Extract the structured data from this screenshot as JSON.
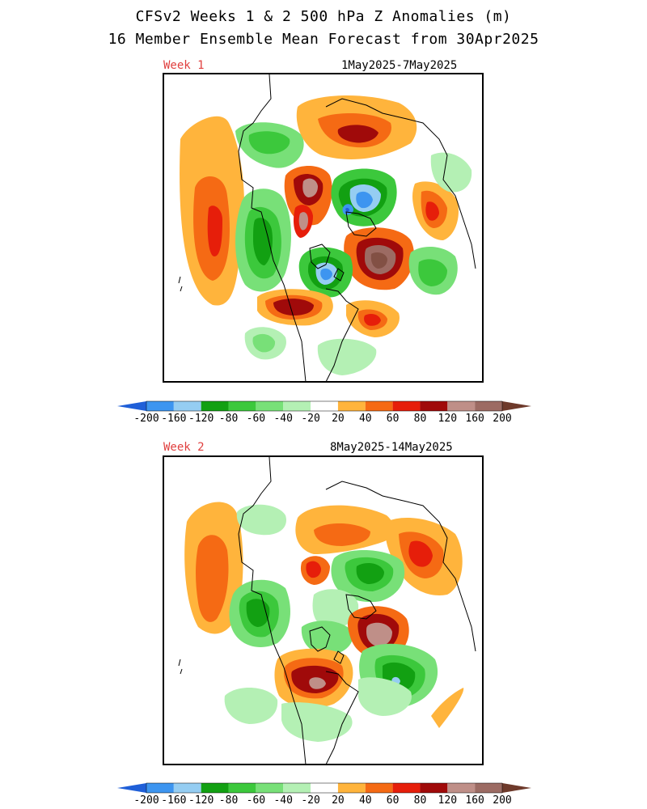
{
  "header": {
    "title_line1": "CFSv2 Weeks 1 & 2 500 hPa Z Anomalies (m)",
    "title_line2": "16 Member Ensemble Mean Forecast from 30Apr2025"
  },
  "panels": [
    {
      "label": "Week 1",
      "dates": "1May2025-7May2025"
    },
    {
      "label": "Week 2",
      "dates": "8May2025-14May2025"
    }
  ],
  "colorbar": {
    "levels": [
      "-200",
      "-160",
      "-120",
      "-80",
      "-60",
      "-40",
      "-20",
      "20",
      "40",
      "60",
      "80",
      "120",
      "160",
      "200"
    ],
    "colors": [
      "#1f5fd8",
      "#3d95f0",
      "#95cdf2",
      "#12a012",
      "#3cc83c",
      "#78e078",
      "#b4f0b4",
      "#ffffff",
      "#ffb43c",
      "#f56a14",
      "#e61e0a",
      "#a00a0a",
      "#bf8f88",
      "#9c6b63",
      "#6e3a2b"
    ]
  },
  "colors": {
    "week_label": "#e0403f",
    "frame": "#000000"
  }
}
